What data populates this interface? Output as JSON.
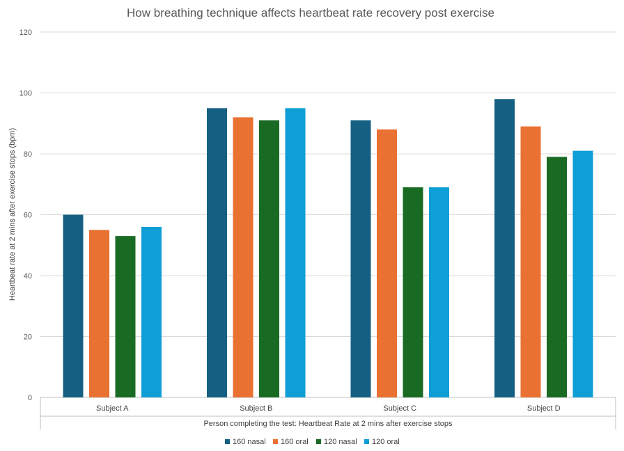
{
  "chart_data": {
    "type": "bar",
    "title": "How breathing technique affects heartbeat rate recovery post exercise",
    "xlabel": "Person completing the test: Heartbeat Rate at 2 mins after exercise stops",
    "ylabel": "Heartbeat rate at 2 mins after exercise stops (bpm)",
    "categories": [
      "Subject A",
      "Subject B",
      "Subject C",
      "Subject D"
    ],
    "series": [
      {
        "name": "160 nasal",
        "color": "#156082",
        "values": [
          60,
          95,
          91,
          98
        ]
      },
      {
        "name": "160 oral",
        "color": "#E97132",
        "values": [
          55,
          92,
          88,
          89
        ]
      },
      {
        "name": "120 nasal",
        "color": "#196B24",
        "values": [
          53,
          91,
          69,
          79
        ]
      },
      {
        "name": "120 oral",
        "color": "#0F9ED5",
        "values": [
          56,
          95,
          69,
          81
        ]
      }
    ],
    "ylim": [
      0,
      120
    ],
    "yticks": [
      0,
      20,
      40,
      60,
      80,
      100,
      120
    ],
    "grid": true,
    "legend_position": "bottom"
  }
}
